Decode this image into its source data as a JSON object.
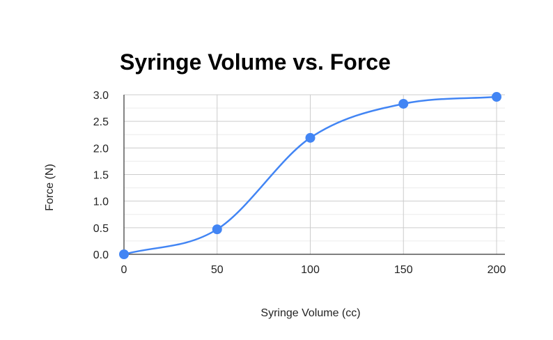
{
  "chart_data": {
    "type": "line",
    "title": "Syringe Volume vs. Force",
    "xlabel": "Syringe Volume (cc)",
    "ylabel": "Force (N)",
    "x_ticks": [
      "0",
      "50",
      "100",
      "150",
      "200"
    ],
    "y_ticks": [
      "0.0",
      "0.5",
      "1.0",
      "1.5",
      "2.0",
      "2.5",
      "3.0"
    ],
    "xlim": [
      0,
      200
    ],
    "ylim": [
      0,
      3.0
    ],
    "grid": true,
    "smooth": true,
    "series": [
      {
        "color": "#4285f4",
        "x": [
          0,
          50,
          100,
          150,
          200
        ],
        "y": [
          0.0,
          0.47,
          2.19,
          2.83,
          2.96
        ]
      }
    ]
  }
}
